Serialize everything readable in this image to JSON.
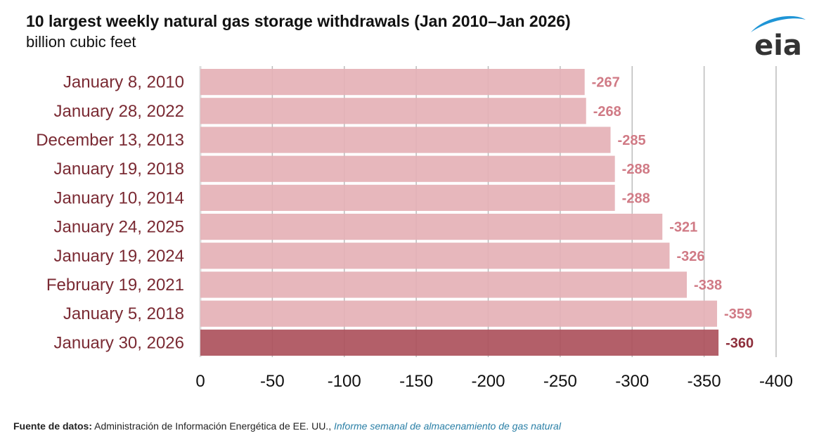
{
  "header": {
    "title": "10 largest weekly natural gas storage withdrawals (Jan 2010–Jan 2026)",
    "subtitle": "billion cubic feet",
    "logo_text": "eia"
  },
  "footer": {
    "source_label": "Fuente de datos:",
    "source_text": "Administración de Información Energética de EE. UU.,",
    "source_link": "Informe semanal de almacenamiento de gas natural"
  },
  "colors": {
    "bar": "#e5b1b6",
    "bar_highlight": "#ad515c",
    "label": "#d07a85",
    "label_highlight": "#8e2f3c",
    "category_text": "#7a2a33",
    "grid": "#bcbcbc",
    "logo_arc": "#1f95d6",
    "logo_text": "#333333"
  },
  "chart_data": {
    "type": "bar",
    "orientation": "horizontal",
    "title": "10 largest weekly natural gas storage withdrawals (Jan 2010–Jan 2026)",
    "ylabel": "",
    "xlabel": "",
    "units": "billion cubic feet",
    "categories": [
      "January 8, 2010",
      "January 28, 2022",
      "December 13, 2013",
      "January 19, 2018",
      "January 10, 2014",
      "January 24, 2025",
      "January 19, 2024",
      "February 19, 2021",
      "January 5, 2018",
      "January 30, 2026"
    ],
    "values": [
      -267,
      -268,
      -285,
      -288,
      -288,
      -321,
      -326,
      -338,
      -359,
      -360
    ],
    "data_labels": [
      "-267",
      "-268",
      "-285",
      "-288",
      "-288",
      "-321",
      "-326",
      "-338",
      "-359",
      "-360"
    ],
    "highlight_index": 9,
    "xlim": [
      0,
      -400
    ],
    "xticks": [
      0,
      -50,
      -100,
      -150,
      -200,
      -250,
      -300,
      -350,
      -400
    ],
    "xtick_labels": [
      "0",
      "-50",
      "-100",
      "-150",
      "-200",
      "-250",
      "-300",
      "-350",
      "-400"
    ],
    "grid": true,
    "legend": "none"
  }
}
